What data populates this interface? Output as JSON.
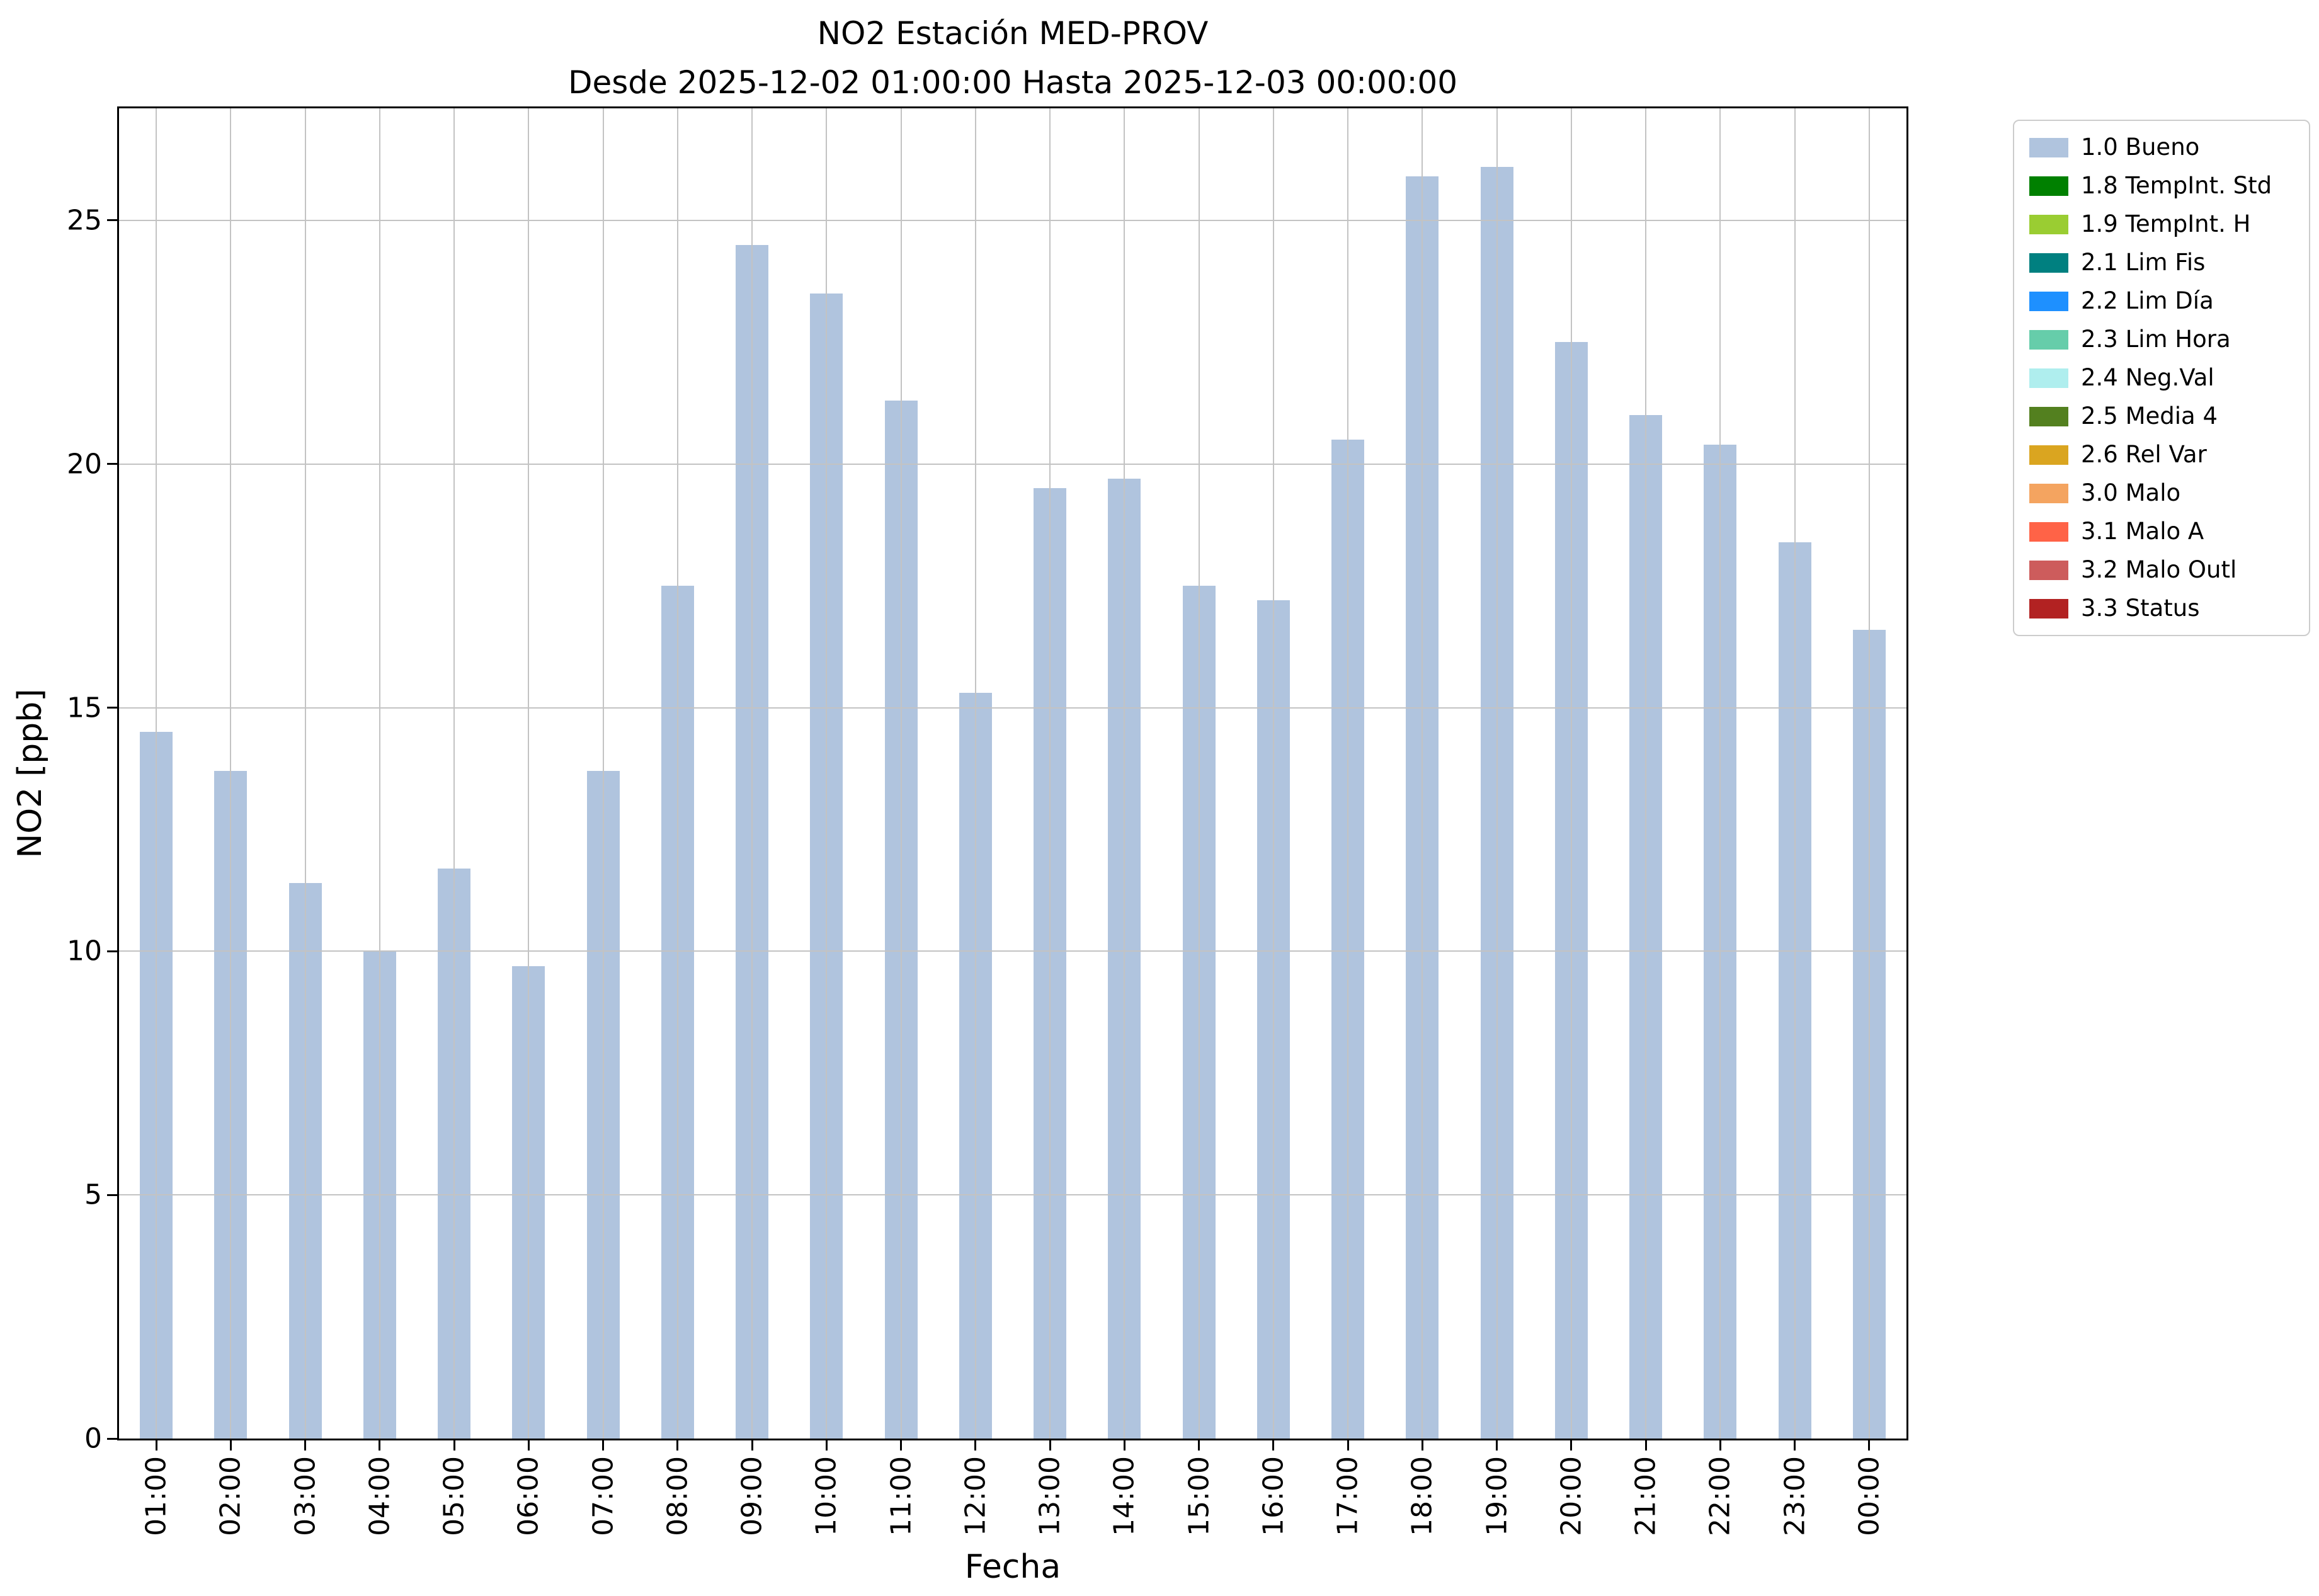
{
  "chart_data": {
    "type": "bar",
    "title": "NO2 Estación MED-PROV",
    "subtitle": "Desde 2025-12-02 01:00:00 Hasta 2025-12-03 00:00:00",
    "xlabel": "Fecha",
    "ylabel": "NO2 [ppb]",
    "ylim": [
      0,
      27.3
    ],
    "yticks": [
      0,
      5,
      10,
      15,
      20,
      25
    ],
    "grid": true,
    "bar_color": "#b0c4de",
    "legend_position": "outside upper right",
    "categories": [
      "01:00",
      "02:00",
      "03:00",
      "04:00",
      "05:00",
      "06:00",
      "07:00",
      "08:00",
      "09:00",
      "10:00",
      "11:00",
      "12:00",
      "13:00",
      "14:00",
      "15:00",
      "16:00",
      "17:00",
      "18:00",
      "19:00",
      "20:00",
      "21:00",
      "22:00",
      "23:00",
      "00:00"
    ],
    "values": [
      14.5,
      13.7,
      11.4,
      10.0,
      11.7,
      9.7,
      13.7,
      17.5,
      24.5,
      23.5,
      21.3,
      15.3,
      19.5,
      19.7,
      17.5,
      17.2,
      20.5,
      25.9,
      26.1,
      22.5,
      21.0,
      20.4,
      18.4,
      16.6
    ],
    "legend": [
      {
        "label": "1.0 Bueno",
        "color": "#b0c4de"
      },
      {
        "label": "1.8 TempInt. Std",
        "color": "#008000"
      },
      {
        "label": "1.9 TempInt. H",
        "color": "#9acd32"
      },
      {
        "label": "2.1 Lim Fis",
        "color": "#008080"
      },
      {
        "label": "2.2 Lim Día",
        "color": "#1e90ff"
      },
      {
        "label": "2.3 Lim Hora",
        "color": "#66cdaa"
      },
      {
        "label": "2.4 Neg.Val",
        "color": "#afeeee"
      },
      {
        "label": "2.5 Media 4",
        "color": "#53801f"
      },
      {
        "label": "2.6 Rel Var",
        "color": "#daa520"
      },
      {
        "label": "3.0 Malo",
        "color": "#f4a460"
      },
      {
        "label": "3.1 Malo A",
        "color": "#ff6347"
      },
      {
        "label": "3.2 Malo Outl",
        "color": "#cd5c5c"
      },
      {
        "label": "3.3 Status",
        "color": "#b22222"
      }
    ]
  }
}
